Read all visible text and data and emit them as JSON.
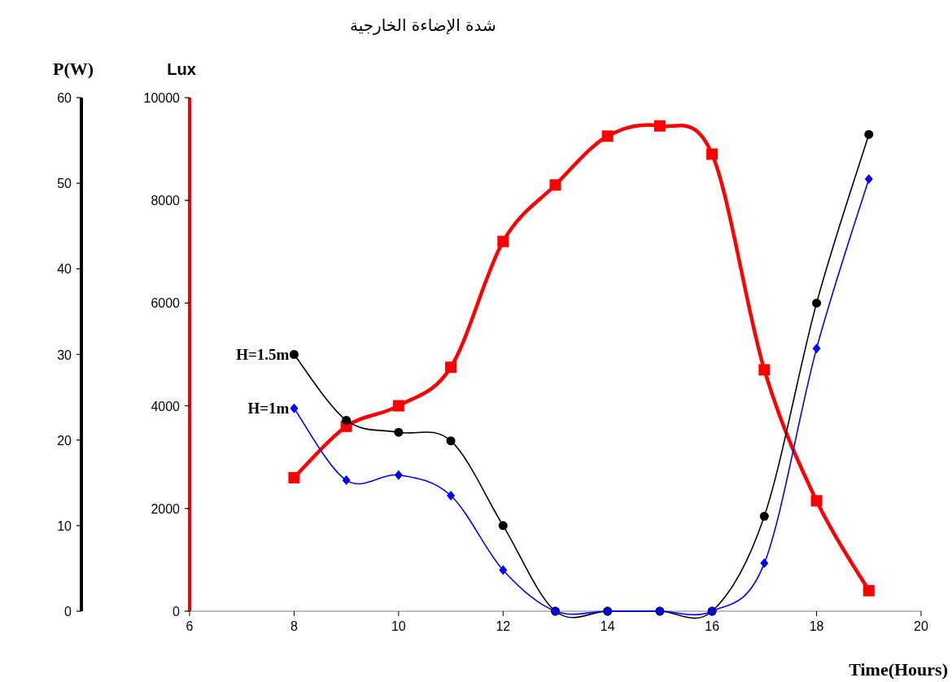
{
  "chart_data": {
    "type": "line",
    "title": "شدة الإضاءة الخارجية",
    "xlabel": "Time(Hours)",
    "ylabel": "Lux",
    "y2label": "P(W)",
    "x": [
      8,
      9,
      10,
      11,
      12,
      13,
      14,
      15,
      16,
      17,
      18,
      19
    ],
    "xlim": [
      6,
      20
    ],
    "xticks": [
      6,
      8,
      10,
      12,
      14,
      16,
      18,
      20
    ],
    "ylim": [
      0,
      10000
    ],
    "yticks": [
      0,
      2000,
      4000,
      6000,
      8000,
      10000
    ],
    "y2lim": [
      0,
      60
    ],
    "y2ticks": [
      0,
      10,
      20,
      30,
      40,
      50,
      60
    ],
    "series": [
      {
        "color": "#ff0000",
        "axis": "y",
        "marker": "square",
        "values": [
          2600,
          3600,
          4000,
          4750,
          7200,
          8300,
          9250,
          9450,
          8900,
          4700,
          2150,
          400
        ]
      },
      {
        "name": "H=1.5m",
        "color": "#000000",
        "axis": "y2",
        "marker": "circle",
        "values": [
          30,
          22.3,
          20.9,
          19.9,
          10,
          0,
          0,
          0,
          0,
          11.1,
          36,
          55.7
        ]
      },
      {
        "name": "H=1m",
        "color": "#0000ff",
        "axis": "y2",
        "marker": "diamond",
        "values": [
          23.7,
          15.3,
          15.9,
          13.5,
          4.8,
          0,
          0,
          0,
          0,
          5.6,
          30.7,
          50.5
        ]
      }
    ]
  }
}
